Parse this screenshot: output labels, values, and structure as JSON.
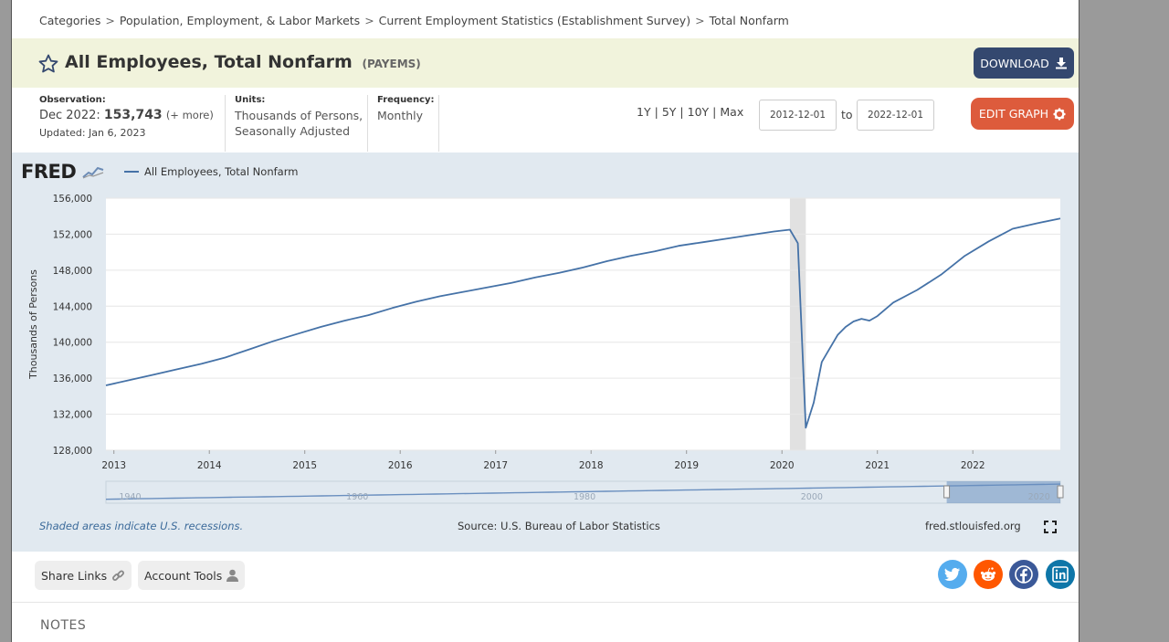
{
  "breadcrumb": [
    "Categories",
    "Population, Employment, & Labor Markets",
    "Current Employment Statistics (Establishment Survey)",
    "Total Nonfarm"
  ],
  "title": "All Employees, Total Nonfarm",
  "series_id": "(PAYEMS)",
  "download_label": "DOWNLOAD",
  "observation": {
    "label": "Observation:",
    "date": "Dec 2022:",
    "value": "153,743",
    "more": "(+ more)",
    "updated": "Updated: Jan 6, 2023"
  },
  "units": {
    "label": "Units:",
    "line1": "Thousands of Persons,",
    "line2": "Seasonally Adjusted"
  },
  "frequency": {
    "label": "Frequency:",
    "value": "Monthly"
  },
  "range_links": [
    "1Y",
    "5Y",
    "10Y",
    "Max"
  ],
  "date_from": "2012-12-01",
  "date_to": "2022-12-01",
  "to_label": "to",
  "edit_label": "EDIT GRAPH",
  "fred_logo": "FRED",
  "shaded_note": "Shaded areas indicate U.S. recessions.",
  "source": "Source: U.S. Bureau of Labor Statistics",
  "fred_url": "fred.stlouisfed.org",
  "share_label": "Share Links",
  "account_label": "Account Tools",
  "notes_label": "NOTES",
  "colors": {
    "line": "#4572a7",
    "recession": "#e1e1e1",
    "download": "#34486f",
    "edit": "#dd5b3c",
    "twitter": "#55acee",
    "reddit": "#ff5700",
    "facebook": "#3b5998",
    "linkedin": "#0e76a8"
  },
  "chart_data": {
    "type": "line",
    "title": "",
    "ylabel": "Thousands of Persons",
    "ylim": [
      128000,
      156000
    ],
    "yticks": [
      "128,000",
      "132,000",
      "136,000",
      "140,000",
      "144,000",
      "148,000",
      "152,000",
      "156,000"
    ],
    "xticks": [
      "2013",
      "2014",
      "2015",
      "2016",
      "2017",
      "2018",
      "2019",
      "2020",
      "2021",
      "2022"
    ],
    "navigator_labels": [
      "1940",
      "1960",
      "1980",
      "2000",
      "2020"
    ],
    "recession": [
      "2020-02",
      "2020-04"
    ],
    "series": [
      {
        "name": "All Employees, Total Nonfarm",
        "x": [
          "2012-12",
          "2013-03",
          "2013-06",
          "2013-09",
          "2013-12",
          "2014-03",
          "2014-06",
          "2014-09",
          "2014-12",
          "2015-03",
          "2015-06",
          "2015-09",
          "2015-12",
          "2016-03",
          "2016-06",
          "2016-09",
          "2016-12",
          "2017-03",
          "2017-06",
          "2017-09",
          "2017-12",
          "2018-03",
          "2018-06",
          "2018-09",
          "2018-12",
          "2019-03",
          "2019-06",
          "2019-09",
          "2019-12",
          "2020-02",
          "2020-03",
          "2020-04",
          "2020-05",
          "2020-06",
          "2020-07",
          "2020-08",
          "2020-09",
          "2020-10",
          "2020-11",
          "2020-12",
          "2021-01",
          "2021-03",
          "2021-06",
          "2021-09",
          "2021-12",
          "2022-03",
          "2022-06",
          "2022-09",
          "2022-12"
        ],
        "values": [
          135200,
          135800,
          136400,
          137000,
          137600,
          138300,
          139200,
          140100,
          140900,
          141700,
          142400,
          143000,
          143800,
          144500,
          145100,
          145600,
          146100,
          146600,
          147200,
          147700,
          148300,
          149000,
          149600,
          150100,
          150700,
          151100,
          151500,
          151900,
          152300,
          152500,
          151000,
          130500,
          133300,
          137800,
          139300,
          140800,
          141700,
          142300,
          142600,
          142400,
          142900,
          144400,
          145800,
          147500,
          149600,
          151200,
          152600,
          153200,
          153743
        ]
      }
    ]
  }
}
